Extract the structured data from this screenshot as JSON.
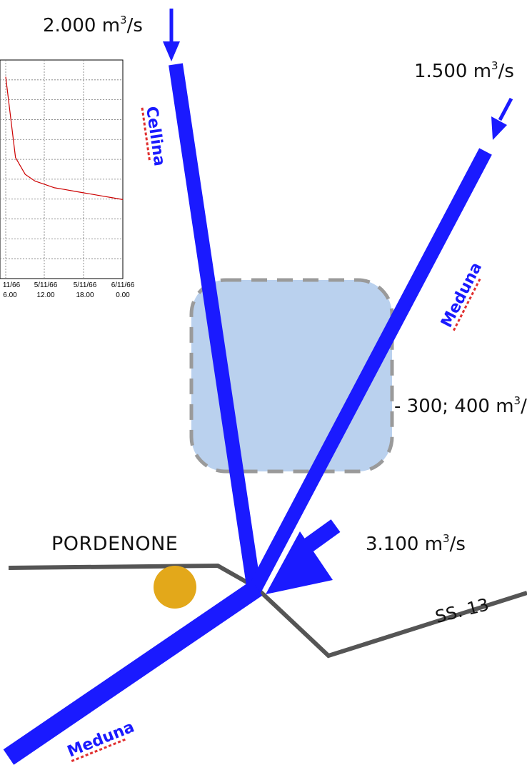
{
  "flows": {
    "cellina_in": {
      "value": "2.000 m",
      "exp": "3",
      "unit": "/s"
    },
    "meduna_in": {
      "value": "1.500 m",
      "exp": "3",
      "unit": "/s"
    },
    "retained": {
      "value": "- 300; 400 m",
      "exp": "3",
      "unit": "/s"
    },
    "confluence": {
      "value": "3.100 m",
      "exp": "3",
      "unit": "/s"
    }
  },
  "rivers": {
    "cellina": "Cellina",
    "meduna_upper": "Meduna",
    "meduna_lower": "Meduna"
  },
  "places": {
    "city": "PORDENONE",
    "road": "SS. 13"
  },
  "colors": {
    "river": "#1a1aff",
    "road": "#555555",
    "reservoir": "#a9c6ea",
    "reservoir_border": "#9a9a9a",
    "city_dot": "#e3a81a",
    "label_underline": "#e03030",
    "hydrograph_line": "#cc0000"
  },
  "chart_data": {
    "type": "line",
    "title": "",
    "xlabel": "",
    "ylabel": "",
    "x_ticks": [
      [
        "11/66",
        "6.00"
      ],
      [
        "5/11/66",
        "12.00"
      ],
      [
        "5/11/66",
        "18.00"
      ],
      [
        "6/11/66",
        "0.00"
      ]
    ],
    "x": [
      0,
      0.25,
      0.5,
      0.75,
      1.0,
      1.25,
      1.5,
      1.75,
      2.0,
      2.25,
      2.5,
      2.75,
      3.0
    ],
    "series": [
      {
        "values": [
          1.2,
          0.72,
          0.62,
          0.58,
          0.56,
          0.54,
          0.53,
          0.52,
          0.51,
          0.5,
          0.49,
          0.48,
          0.47
        ]
      }
    ],
    "grid": true,
    "legend": "none"
  }
}
